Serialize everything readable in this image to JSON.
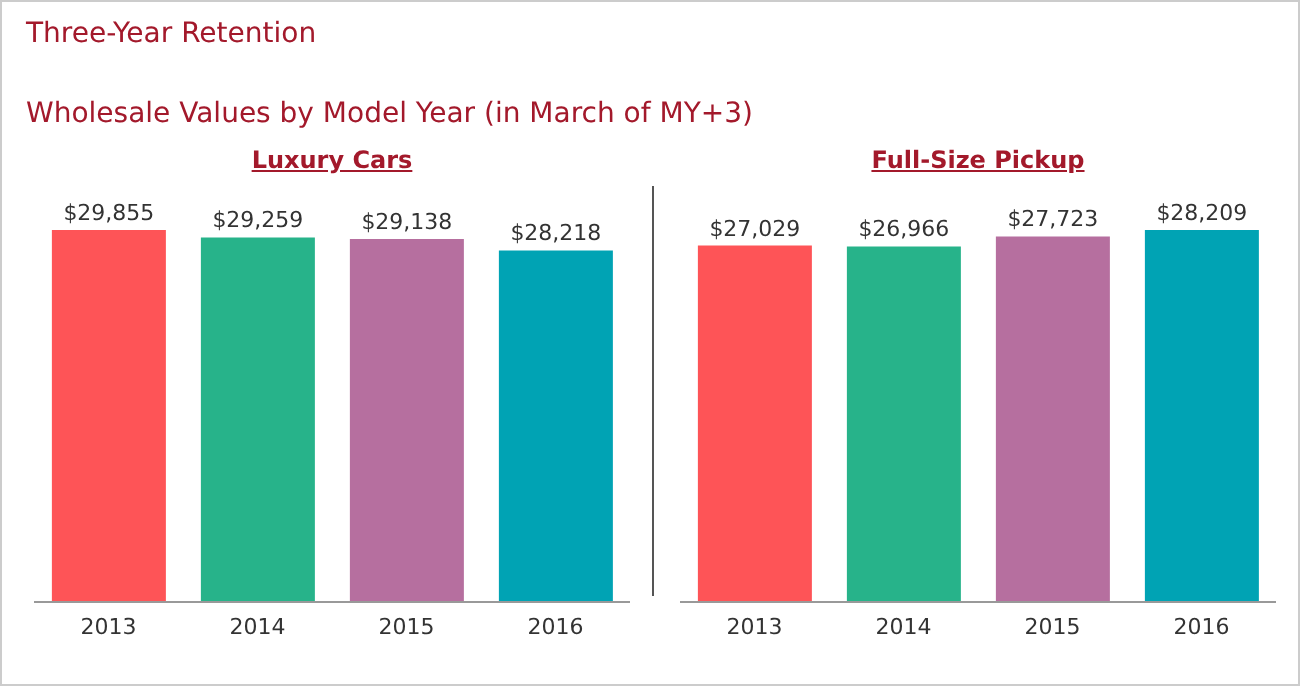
{
  "chart_data": [
    {
      "type": "other",
      "title": "Three-Year Retention",
      "subtitle": "Wholesale Values by Model Year (in March of MY+3)"
    },
    {
      "type": "bar",
      "title": "Luxury Cars",
      "categories": [
        "2013",
        "2014",
        "2015",
        "2016"
      ],
      "values": [
        29855,
        29259,
        29138,
        28218
      ],
      "value_labels": [
        "$29,855",
        "$29,259",
        "$29,138",
        "$28,218"
      ],
      "colors": [
        "#fe5457",
        "#27b38a",
        "#b66f9f",
        "#00a3b4"
      ],
      "tick_labels": "x"
    },
    {
      "type": "bar",
      "title": "Full-Size Pickup",
      "categories": [
        "2013",
        "2014",
        "2015",
        "2016"
      ],
      "values": [
        27029,
        26966,
        27723,
        28209
      ],
      "value_labels": [
        "$27,029",
        "$26,966",
        "$27,723",
        "$28,209"
      ],
      "colors": [
        "#fe5457",
        "#27b38a",
        "#b66f9f",
        "#00a3b4"
      ],
      "tick_labels": "x"
    }
  ]
}
